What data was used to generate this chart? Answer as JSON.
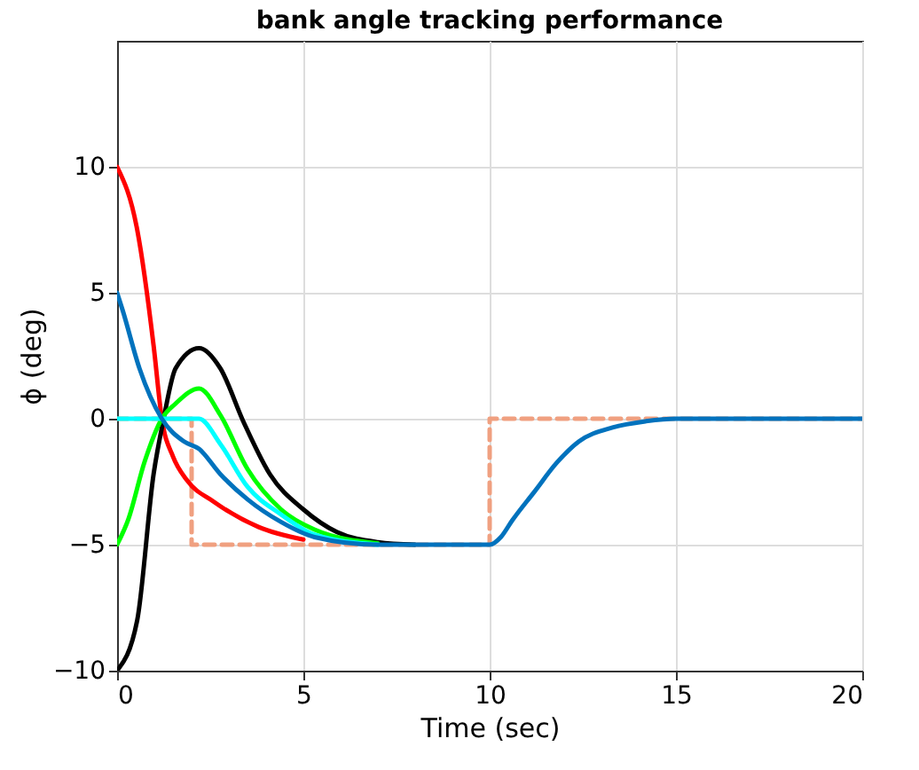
{
  "chart_data": {
    "type": "line",
    "title": "bank angle  tracking performance",
    "xlabel": "Time (sec)",
    "ylabel": "ϕ (deg)",
    "xlim": [
      0,
      20
    ],
    "ylim": [
      -10,
      15
    ],
    "xticks": [
      0,
      5,
      10,
      15,
      20
    ],
    "yticks": [
      -10,
      -5,
      0,
      5,
      10
    ],
    "grid": true,
    "line_style": "solid",
    "series": [
      {
        "color": "#f0a080",
        "line_style": "dashed",
        "x": [
          0,
          2,
          2,
          10,
          10,
          20
        ],
        "values": [
          0,
          0,
          -5,
          -5,
          0,
          0
        ]
      },
      {
        "color": "#ff0000",
        "x": [
          0,
          0.54,
          0.98,
          1.2,
          1.5,
          1.88,
          2.6,
          3.8,
          5
        ],
        "values": [
          10,
          7.5,
          2.9,
          0,
          -1.5,
          -2.45,
          -3.3,
          -4.3,
          -4.8
        ]
      },
      {
        "color": "#000000",
        "x": [
          0,
          0.54,
          0.98,
          1.25,
          1.57,
          2.2,
          2.77,
          3.4,
          4.1,
          5,
          5.9,
          7,
          8
        ],
        "values": [
          -10,
          -8,
          -2.2,
          0,
          2,
          2.8,
          2,
          -0.15,
          -2.2,
          -3.6,
          -4.5,
          -4.9,
          -5
        ]
      },
      {
        "color": "#00ff00",
        "x": [
          0,
          0.3,
          0.74,
          1.2,
          1.57,
          2.2,
          2.77,
          3.5,
          4.4,
          5.3,
          7
        ],
        "values": [
          -5,
          -4,
          -1.7,
          0,
          0.6,
          1.2,
          0.15,
          -2,
          -3.6,
          -4.4,
          -4.95
        ]
      },
      {
        "color": "#00ffff",
        "x": [
          0,
          2.2,
          2.77,
          3.5,
          4.4,
          5.3,
          7
        ],
        "values": [
          0,
          0,
          -1,
          -2.7,
          -3.8,
          -4.6,
          -5
        ]
      },
      {
        "color": "#0072bd",
        "x": [
          0,
          0.15,
          0.6,
          1.2,
          1.79,
          2.2,
          2.77,
          3.5,
          4.4,
          5.3,
          7,
          10,
          10.3,
          10.6,
          11.2,
          11.8,
          12.4,
          13.3,
          14.2,
          15,
          20
        ],
        "values": [
          5,
          4.3,
          2,
          0,
          -0.9,
          -1.2,
          -2.2,
          -3.2,
          -4.1,
          -4.7,
          -5,
          -5,
          -4.7,
          -4.05,
          -2.9,
          -1.75,
          -0.9,
          -0.35,
          -0.1,
          0,
          0
        ]
      }
    ]
  }
}
